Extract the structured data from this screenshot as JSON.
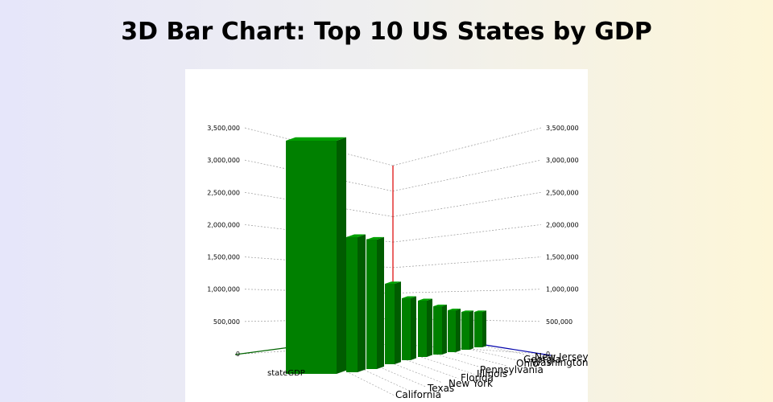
{
  "page": {
    "title": "3D Bar Chart: Top 10 US States by GDP"
  },
  "colors": {
    "bar_front": "#008000",
    "bar_side": "#005c00",
    "bar_top": "#00a000",
    "axis_vertical": "#dd0000",
    "axis_depth": "#0000aa",
    "axis_x": "#006400",
    "grid": "#9a9a9a"
  },
  "chart_data": {
    "type": "bar",
    "title": "3D Bar Chart: Top 10 US States by GDP",
    "series": [
      {
        "name": "stateGDP",
        "values": [
          3500000,
          2000000,
          2000000,
          1250000,
          950000,
          900000,
          800000,
          750000,
          700000,
          700000
        ]
      }
    ],
    "categories": [
      "California",
      "Texas",
      "New York",
      "Florida",
      "Illinois",
      "Pennsylvania",
      "Ohio",
      "Georgia",
      "Washington",
      "New Jersey"
    ],
    "yticks": [
      "0",
      "500,000",
      "1,000,000",
      "1,500,000",
      "2,000,000",
      "2,500,000",
      "3,000,000",
      "3,500,000"
    ],
    "ylim": [
      0,
      3500000
    ],
    "grid": true
  }
}
